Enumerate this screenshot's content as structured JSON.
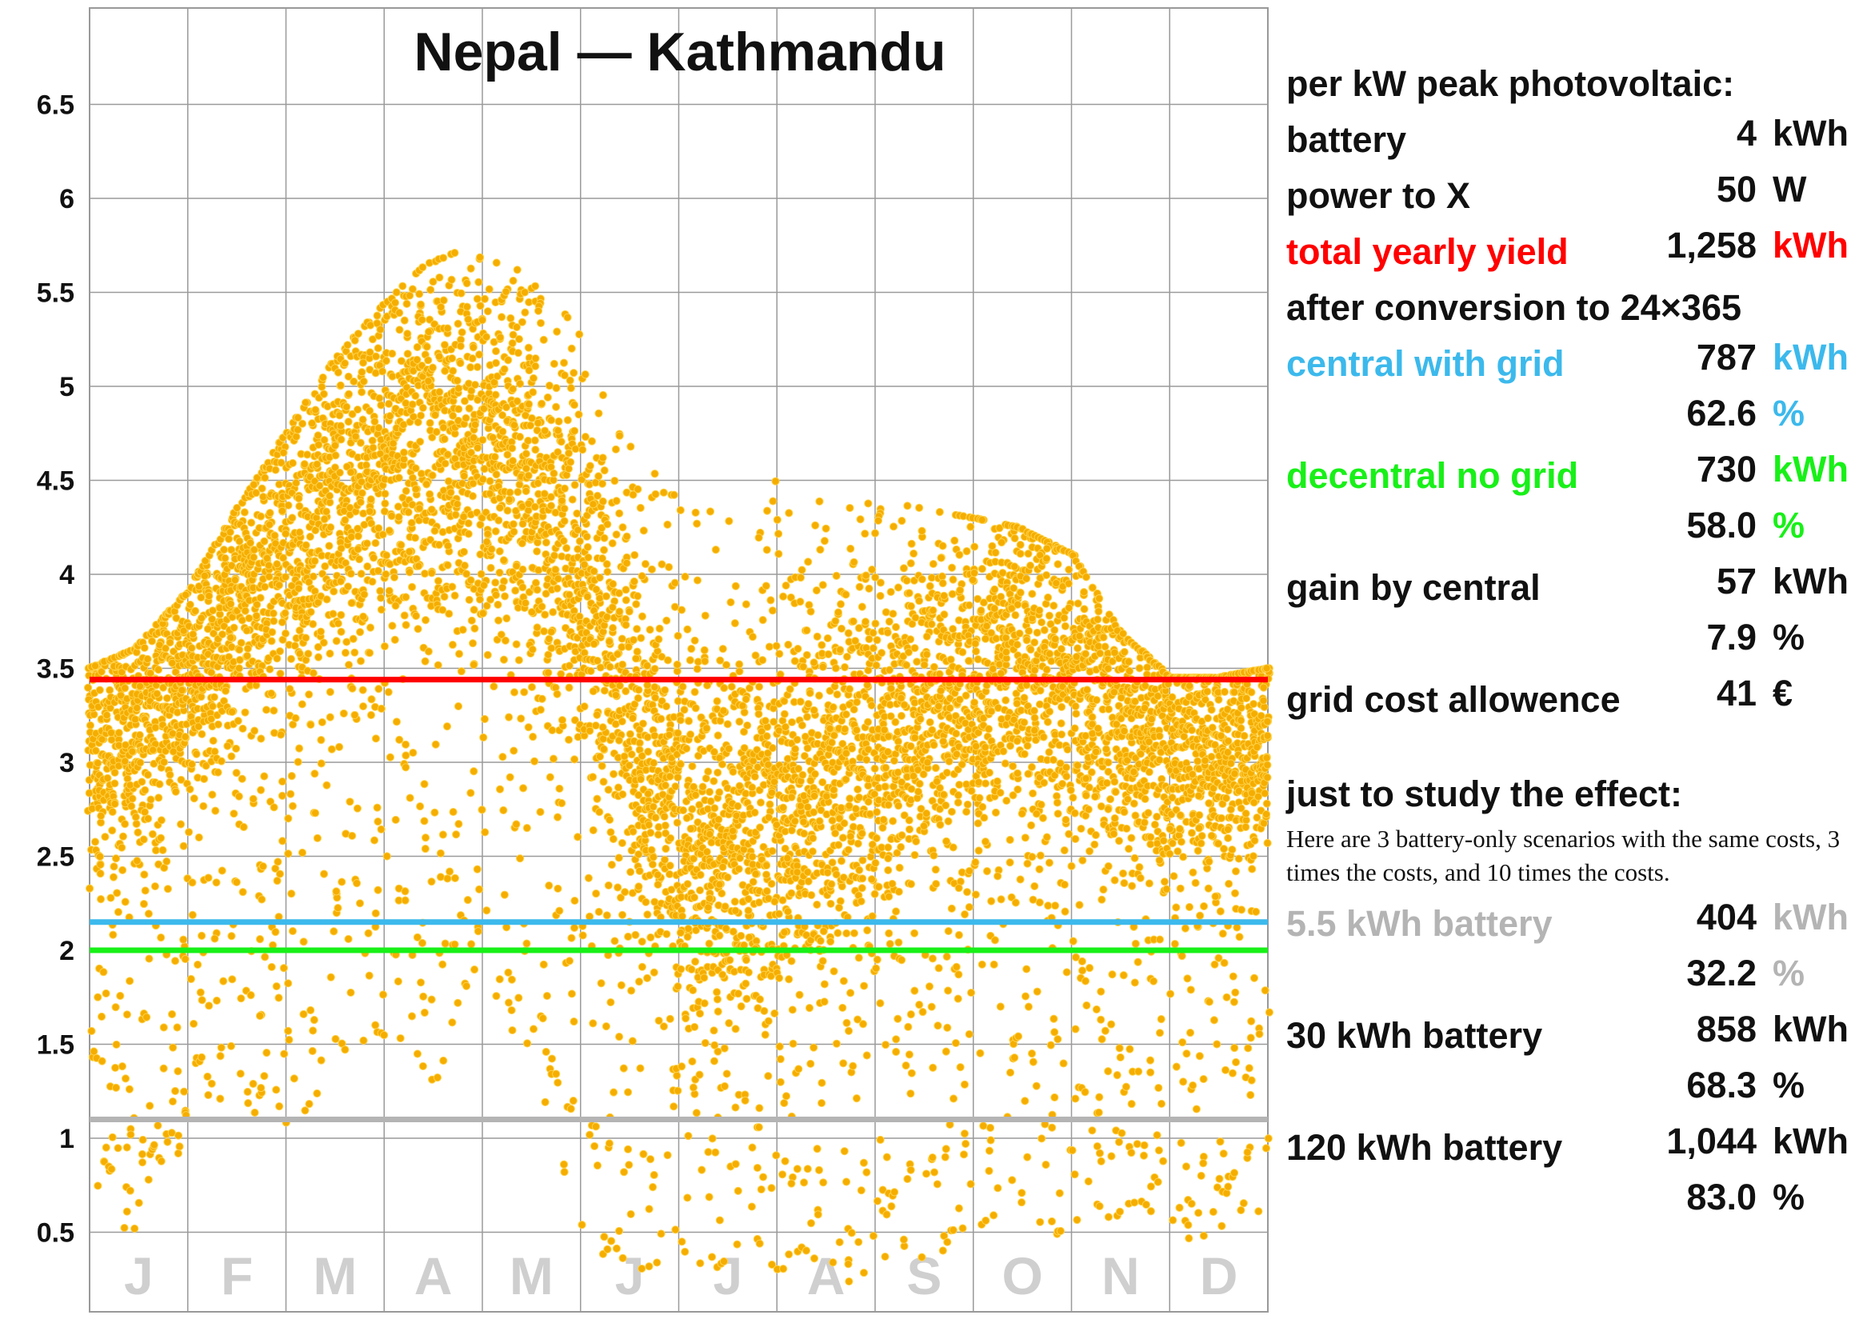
{
  "colors": {
    "red": "#ff0000",
    "blue": "#3cb9ec",
    "green": "#18f018",
    "gray": "#b4b4b4",
    "dots": "#f5ad00",
    "dot_edge": "#ffd24a",
    "text": "#111111"
  },
  "chart_data": {
    "type": "scatter",
    "title": "Nepal — Kathmandu",
    "xlabel": "",
    "ylabel": "",
    "y_ticks": [
      "0.5",
      "1",
      "1.5",
      "2",
      "2.5",
      "3",
      "3.5",
      "4",
      "4.5",
      "5",
      "5.5",
      "6",
      "6.5"
    ],
    "ylim": [
      0,
      6.85
    ],
    "x_month_labels": [
      "J",
      "F",
      "M",
      "A",
      "M",
      "J",
      "J",
      "A",
      "S",
      "O",
      "N",
      "D"
    ],
    "xlim": [
      1,
      365
    ],
    "grid": true,
    "reference_lines": [
      {
        "label": "total yearly yield",
        "y": 3.44,
        "color": "#ff0000"
      },
      {
        "label": "central with grid",
        "y": 2.15,
        "color": "#3cb9ec"
      },
      {
        "label": "decentral no grid",
        "y": 2.0,
        "color": "#18f018"
      },
      {
        "label": "5.5 kWh battery",
        "y": 1.1,
        "color": "#b4b4b4"
      }
    ],
    "series": [
      {
        "values_description_profile": {
          "x": [
            1,
            15,
            31,
            45,
            60,
            75,
            90,
            105,
            120,
            135,
            150,
            165,
            182,
            196,
            213,
            227,
            244,
            258,
            274,
            288,
            305,
            319,
            335,
            349,
            365
          ],
          "y_median": [
            3.15,
            3.2,
            3.45,
            3.85,
            4.15,
            4.35,
            4.6,
            4.75,
            4.7,
            4.5,
            4.1,
            3.5,
            2.6,
            2.5,
            2.75,
            2.85,
            3.0,
            3.3,
            3.45,
            3.55,
            3.45,
            3.25,
            3.1,
            3.05,
            3.15
          ],
          "y_max": [
            3.5,
            3.6,
            3.9,
            4.3,
            4.7,
            5.1,
            5.4,
            5.65,
            5.75,
            5.6,
            5.35,
            4.8,
            4.45,
            4.35,
            4.5,
            4.45,
            4.4,
            4.35,
            4.3,
            4.25,
            4.1,
            3.7,
            3.45,
            3.45,
            3.5
          ],
          "y_min": [
            0.5,
            0.5,
            1.0,
            1.2,
            1.0,
            1.2,
            1.5,
            1.2,
            1.8,
            1.5,
            0.5,
            0.3,
            0.2,
            0.25,
            0.3,
            0.25,
            0.2,
            0.3,
            0.5,
            0.5,
            0.4,
            0.6,
            0.5,
            0.4,
            0.6
          ]
        }
      }
    ]
  },
  "panel": {
    "heading": "per kW peak photovoltaic:",
    "rows1": [
      {
        "label": "battery",
        "value": "4",
        "unit": "kWh",
        "label_color": "#111111",
        "unit_color": "#111111"
      },
      {
        "label": "power to X",
        "value": "50",
        "unit": "W",
        "label_color": "#111111",
        "unit_color": "#111111"
      },
      {
        "label": "total yearly yield",
        "value": "1,258",
        "unit": "kWh",
        "label_color": "#ff0000",
        "unit_color": "#ff0000"
      }
    ],
    "conversion": "after conversion to 24×365",
    "rows2": [
      {
        "label": "central with grid",
        "value": "787",
        "unit": "kWh",
        "label_color": "#3cb9ec",
        "unit_color": "#3cb9ec"
      },
      {
        "label": "",
        "value": "62.6",
        "unit": "%",
        "label_color": "#111111",
        "unit_color": "#3cb9ec"
      },
      {
        "label": "decentral no grid",
        "value": "730",
        "unit": "kWh",
        "label_color": "#18f018",
        "unit_color": "#18f018"
      },
      {
        "label": "",
        "value": "58.0",
        "unit": "%",
        "label_color": "#111111",
        "unit_color": "#18f018"
      },
      {
        "label": "gain by central",
        "value": "57",
        "unit": "kWh",
        "label_color": "#111111",
        "unit_color": "#111111"
      },
      {
        "label": "",
        "value": "7.9",
        "unit": "%",
        "label_color": "#111111",
        "unit_color": "#111111"
      },
      {
        "label": "grid cost allowence",
        "value": "41",
        "unit": "€",
        "label_color": "#111111",
        "unit_color": "#111111"
      }
    ],
    "study_heading": "just to study the effect:",
    "study_note": "Here are 3 battery-only scenarios with the same costs, 3 times the costs, and 10 times the costs.",
    "rows3": [
      {
        "label": "5.5 kWh battery",
        "value": "404",
        "unit": "kWh",
        "label_color": "#b4b4b4",
        "unit_color": "#b4b4b4"
      },
      {
        "label": "",
        "value": "32.2",
        "unit": "%",
        "label_color": "#111111",
        "unit_color": "#b4b4b4"
      },
      {
        "label": "30 kWh battery",
        "value": "858",
        "unit": "kWh",
        "label_color": "#111111",
        "unit_color": "#111111"
      },
      {
        "label": "",
        "value": "68.3",
        "unit": "%",
        "label_color": "#111111",
        "unit_color": "#111111"
      },
      {
        "label": "120 kWh battery",
        "value": "1,044",
        "unit": "kWh",
        "label_color": "#111111",
        "unit_color": "#111111"
      },
      {
        "label": "",
        "value": "83.0",
        "unit": "%",
        "label_color": "#111111",
        "unit_color": "#111111"
      }
    ]
  }
}
